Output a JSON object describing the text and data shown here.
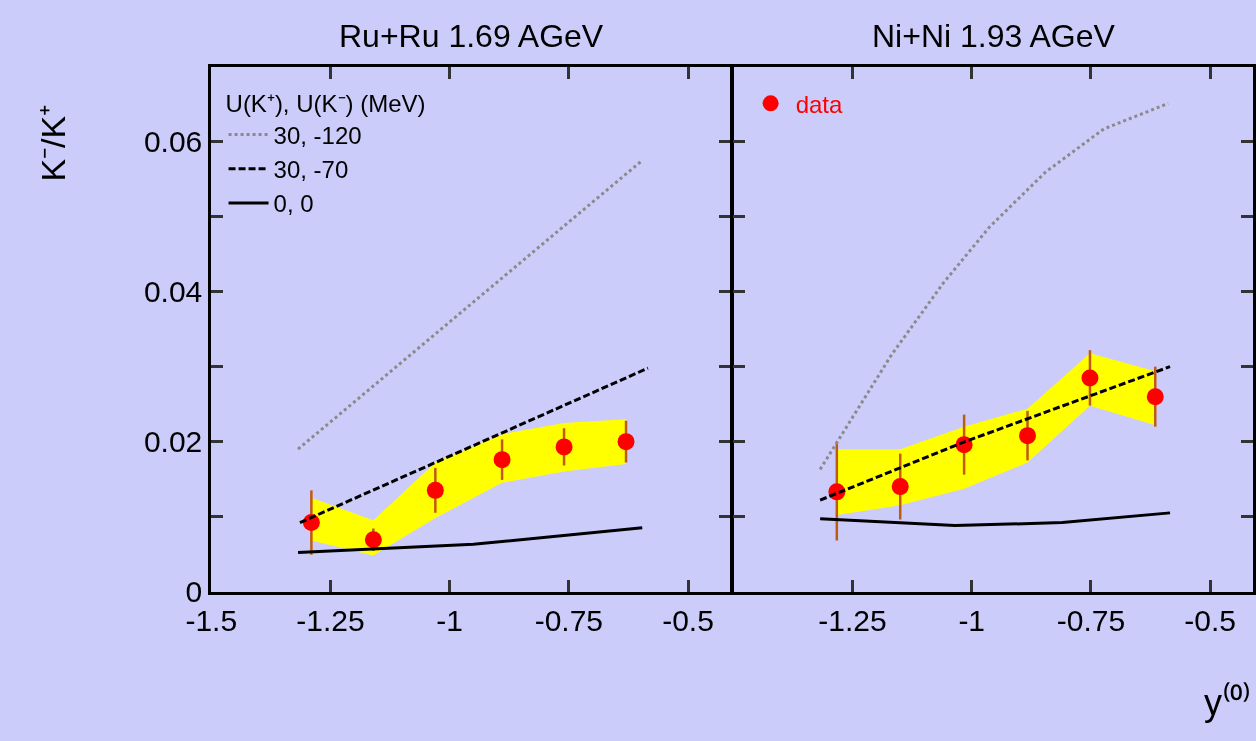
{
  "chart_data": [
    {
      "type": "line",
      "title": "Ru+Ru 1.69 AGeV",
      "ylabel": "K⁻/K⁺",
      "legend_title": "U(K⁺), U(K⁻) (MeV)",
      "legend": "top left",
      "grid": false,
      "xlim": [
        -1.5,
        -0.41
      ],
      "xticks": [
        -1.5,
        -1.25,
        -1,
        -0.75,
        -0.5
      ],
      "ylim": [
        0,
        0.07
      ],
      "yticks": [
        0,
        {
          "value": 0.01,
          "label": null
        },
        0.02,
        {
          "value": 0.03,
          "label": null
        },
        0.04,
        {
          "value": 0.05,
          "label": null
        },
        0.06
      ],
      "series": [
        {
          "name": "30, -120",
          "color": "#8a8a8a",
          "line_style": "dotted",
          "marker": "none",
          "x": [
            -1.318,
            -0.596
          ],
          "values": [
            0.019,
            0.0575
          ]
        },
        {
          "name": "30, -70",
          "color": "#000000",
          "line_style": "dashed",
          "marker": "none",
          "x": [
            -1.314,
            -0.584
          ],
          "values": [
            0.0092,
            0.0298
          ]
        },
        {
          "name": "0, 0",
          "color": "#000000",
          "line_style": "solid",
          "marker": "none",
          "x": [
            -1.318,
            -0.95,
            -0.596
          ],
          "values": [
            0.0052,
            0.0063,
            0.0085
          ]
        },
        {
          "type": "scatter",
          "color": "#ff0000",
          "marker": "circle",
          "x": [
            -1.29,
            -1.16,
            -1.03,
            -0.89,
            -0.76,
            -0.63
          ],
          "values": [
            0.0092,
            0.0069,
            0.0135,
            0.0176,
            0.0193,
            0.02
          ],
          "errors": [
            0.0043,
            0.0015,
            0.003,
            0.0027,
            0.0025,
            0.0028
          ],
          "lower": [
            0.0068,
            0.0048,
            0.0098,
            0.0145,
            0.016,
            0.017
          ],
          "upper": [
            0.0125,
            0.0095,
            0.0172,
            0.021,
            0.0225,
            0.023
          ]
        }
      ]
    },
    {
      "type": "line",
      "title": "Ni+Ni 1.93 AGeV",
      "xlabel": "y⁽⁰⁾",
      "legend": "top left",
      "grid": false,
      "tick_labels": "x",
      "xlim": [
        -1.5,
        -0.41
      ],
      "xticks": [
        -1.25,
        -1,
        -0.75,
        -0.5
      ],
      "ylim": [
        0,
        0.07
      ],
      "yticks": [
        0,
        0.01,
        0.02,
        0.03,
        0.04,
        0.05,
        0.06
      ],
      "series": [
        {
          "color": "#8a8a8a",
          "line_style": "dotted",
          "marker": "none",
          "x": [
            -1.318,
            -1.168,
            -1.059,
            -0.963,
            -0.846,
            -0.723,
            -0.588
          ],
          "values": [
            0.0163,
            0.0316,
            0.0412,
            0.0486,
            0.0559,
            0.0617,
            0.0651
          ]
        },
        {
          "color": "#000000",
          "line_style": "dashed",
          "marker": "none",
          "x": [
            -1.318,
            -1.014,
            -0.584
          ],
          "values": [
            0.0122,
            0.02,
            0.03
          ]
        },
        {
          "color": "#000000",
          "line_style": "solid",
          "marker": "none",
          "x": [
            -1.318,
            -1.035,
            -0.81,
            -0.584
          ],
          "values": [
            0.0097,
            0.0088,
            0.0092,
            0.0105
          ]
        },
        {
          "type": "scatter",
          "name": "data",
          "color": "#ff0000",
          "marker": "circle",
          "x": [
            -1.283,
            -1.15,
            -1.016,
            -0.883,
            -0.752,
            -0.615
          ],
          "values": [
            0.0133,
            0.014,
            0.0196,
            0.0208,
            0.0285,
            0.026
          ],
          "errors": [
            0.0065,
            0.0044,
            0.004,
            0.0033,
            0.0037,
            0.004
          ],
          "lower": [
            0.0102,
            0.0115,
            0.0137,
            0.0172,
            0.0248,
            0.0222
          ],
          "upper": [
            0.019,
            0.019,
            0.022,
            0.0244,
            0.0318,
            0.0294
          ]
        }
      ]
    }
  ]
}
